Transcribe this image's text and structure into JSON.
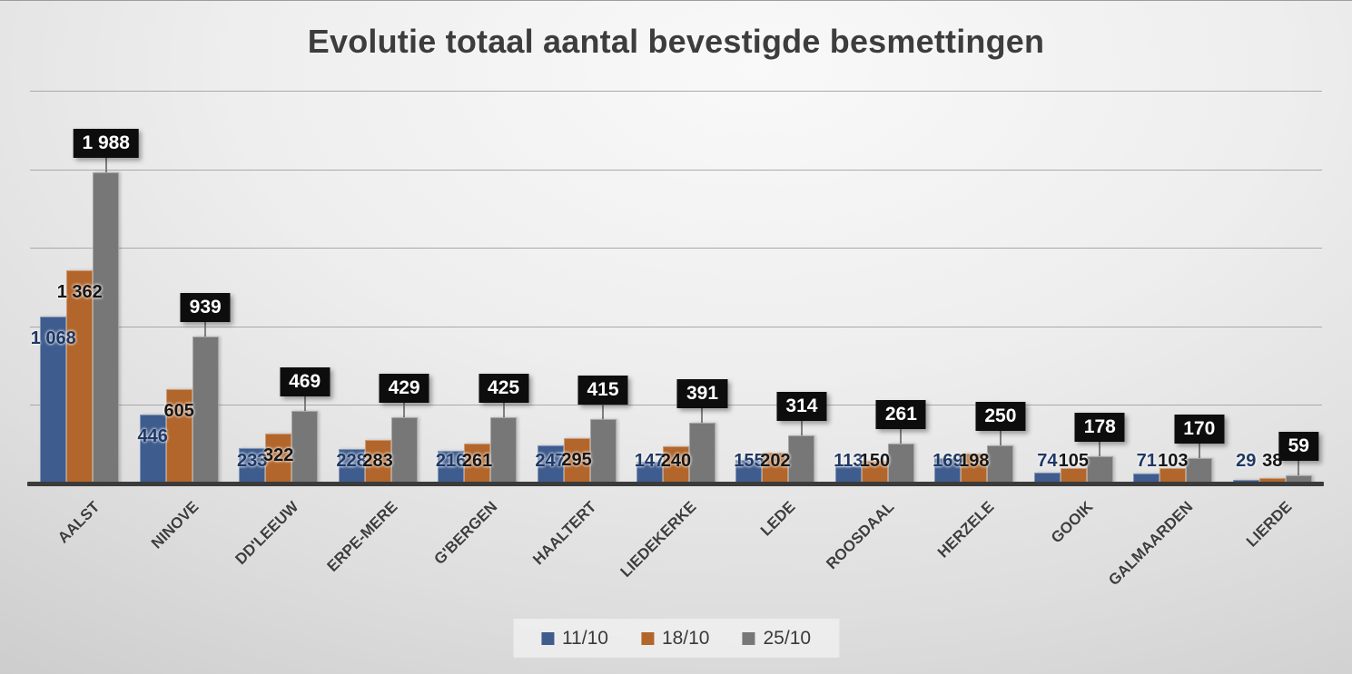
{
  "slide": {
    "title": "Evolutie totaal aantal bevestigde besmettingen"
  },
  "chart_data": {
    "type": "bar",
    "title": "Evolutie totaal aantal bevestigde besmettingen",
    "categories": [
      "AALST",
      "NINOVE",
      "DD'LEEUW",
      "ERPE-MERE",
      "G'BERGEN",
      "HAALTERT",
      "LIEDEKERKE",
      "LEDE",
      "ROOSDAAL",
      "HERZELE",
      "GOOIK",
      "GALMAARDEN",
      "LIERDE"
    ],
    "series": [
      {
        "name": "11/10",
        "color": "#3E5C8E",
        "label_color": "#1F3864",
        "label_style": "plain",
        "values": [
          1068,
          446,
          233,
          228,
          216,
          247,
          147,
          155,
          113,
          169,
          74,
          71,
          29
        ]
      },
      {
        "name": "18/10",
        "color": "#B2662B",
        "label_color": "#161616",
        "label_style": "plain",
        "values": [
          1362,
          605,
          322,
          283,
          261,
          295,
          240,
          202,
          150,
          198,
          105,
          103,
          38
        ]
      },
      {
        "name": "25/10",
        "color": "#777777",
        "label_color": "#FFFFFF",
        "label_style": "black-callout",
        "values": [
          1988,
          939,
          469,
          429,
          425,
          415,
          391,
          314,
          261,
          250,
          178,
          170,
          59
        ]
      }
    ],
    "ylim": [
      0,
      2500
    ],
    "gridline_step": 500,
    "grid": true,
    "gridline_color": "#A9A9A9",
    "axis_line_color": "#3B3B3B",
    "legend_position": "bottom",
    "legend_labels": [
      "11/10",
      "18/10",
      "25/10"
    ],
    "number_format": "space thousands separator (e.g. 1 988)",
    "xlabel": "",
    "ylabel": ""
  }
}
